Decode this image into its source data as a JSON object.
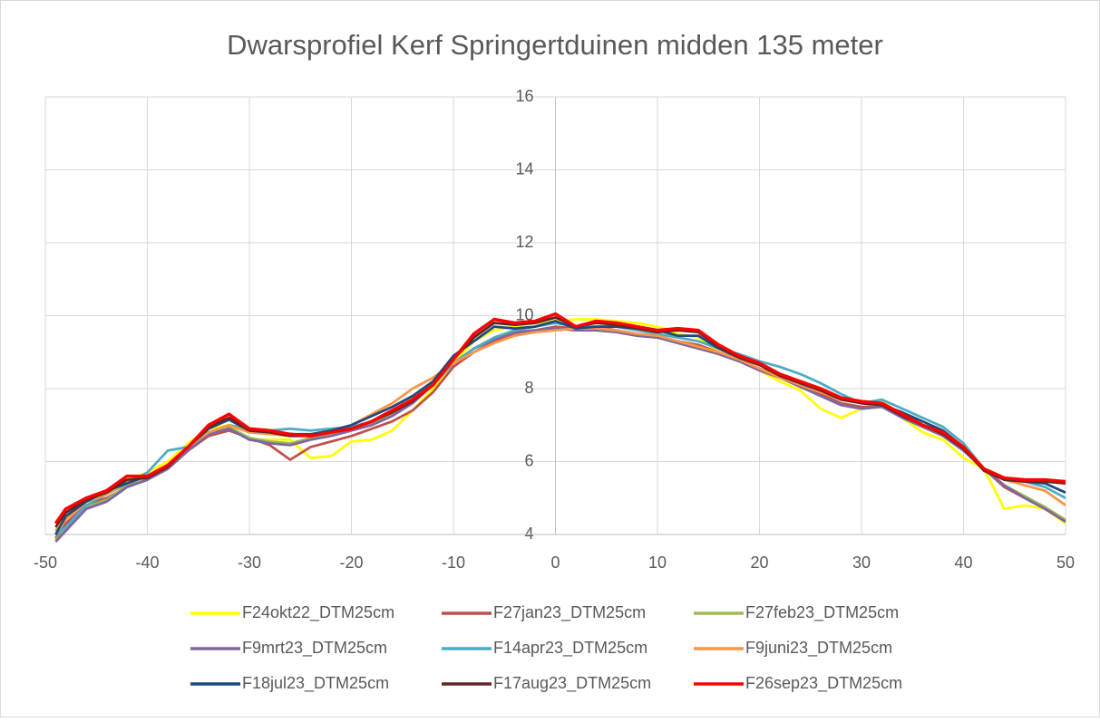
{
  "chart_data": {
    "type": "line",
    "title": "Dwarsprofiel Kerf Springertduinen midden 135 meter",
    "x": [
      -49,
      -48,
      -46,
      -44,
      -42,
      -40,
      -38,
      -36,
      -34,
      -32,
      -30,
      -28,
      -26,
      -24,
      -22,
      -20,
      -18,
      -16,
      -14,
      -12,
      -10,
      -8,
      -6,
      -4,
      -2,
      0,
      2,
      4,
      6,
      8,
      10,
      12,
      14,
      16,
      18,
      20,
      22,
      24,
      26,
      28,
      30,
      32,
      34,
      36,
      38,
      40,
      42,
      44,
      46,
      48,
      50
    ],
    "xlim": [
      -50,
      50
    ],
    "xticks": [
      -50,
      -40,
      -30,
      -20,
      -10,
      0,
      10,
      20,
      30,
      40,
      50
    ],
    "ylim": [
      4,
      16
    ],
    "yticks": [
      4,
      6,
      8,
      10,
      12,
      14,
      16
    ],
    "grid": true,
    "legend": "bottom",
    "series": [
      {
        "name": "F24okt22_DTM25cm",
        "color": "#ffff00",
        "values": [
          4.1,
          4.5,
          4.9,
          5.1,
          5.5,
          5.7,
          6.0,
          6.5,
          6.9,
          7.0,
          6.6,
          6.6,
          6.6,
          6.1,
          6.15,
          6.55,
          6.6,
          6.85,
          7.4,
          8.0,
          8.7,
          9.3,
          9.6,
          9.7,
          9.8,
          9.85,
          9.9,
          9.9,
          9.85,
          9.8,
          9.7,
          9.5,
          9.4,
          9.0,
          8.8,
          8.5,
          8.2,
          7.95,
          7.45,
          7.2,
          7.45,
          7.7,
          7.2,
          6.8,
          6.6,
          6.1,
          5.8,
          4.7,
          4.8,
          4.7,
          4.3
        ]
      },
      {
        "name": "F27jan23_DTM25cm",
        "color": "#c0504d",
        "values": [
          3.9,
          4.3,
          4.8,
          5.0,
          5.3,
          5.5,
          5.8,
          6.3,
          6.7,
          6.85,
          6.65,
          6.45,
          6.05,
          6.4,
          6.55,
          6.7,
          6.9,
          7.1,
          7.4,
          7.9,
          8.6,
          9.0,
          9.3,
          9.5,
          9.6,
          9.7,
          9.65,
          9.7,
          9.6,
          9.5,
          9.4,
          9.3,
          9.2,
          9.0,
          8.8,
          8.55,
          8.35,
          8.1,
          7.85,
          7.6,
          7.5,
          7.5,
          7.3,
          7.0,
          6.7,
          6.3,
          5.8,
          5.3,
          5.0,
          4.7,
          4.4
        ]
      },
      {
        "name": "F27feb23_DTM25cm",
        "color": "#9bbb59",
        "values": [
          3.85,
          4.15,
          4.75,
          4.95,
          5.35,
          5.5,
          5.85,
          6.35,
          6.8,
          6.95,
          6.65,
          6.55,
          6.5,
          6.65,
          6.75,
          6.9,
          7.05,
          7.3,
          7.65,
          8.15,
          8.7,
          9.1,
          9.35,
          9.55,
          9.6,
          9.65,
          9.6,
          9.6,
          9.55,
          9.45,
          9.4,
          9.25,
          9.1,
          8.95,
          8.75,
          8.5,
          8.3,
          8.05,
          7.8,
          7.55,
          7.45,
          7.5,
          7.2,
          6.95,
          6.7,
          6.3,
          5.8,
          5.35,
          5.05,
          4.75,
          4.4
        ]
      },
      {
        "name": "F9mrt23_DTM25cm",
        "color": "#8064a2",
        "values": [
          3.8,
          4.1,
          4.7,
          4.9,
          5.3,
          5.5,
          5.8,
          6.3,
          6.75,
          6.9,
          6.6,
          6.5,
          6.45,
          6.6,
          6.7,
          6.85,
          7.0,
          7.25,
          7.6,
          8.1,
          8.7,
          9.1,
          9.35,
          9.55,
          9.6,
          9.65,
          9.6,
          9.6,
          9.55,
          9.45,
          9.4,
          9.25,
          9.1,
          8.95,
          8.75,
          8.5,
          8.3,
          8.05,
          7.8,
          7.55,
          7.45,
          7.5,
          7.2,
          6.95,
          6.7,
          6.3,
          5.8,
          5.35,
          5.0,
          4.7,
          4.35
        ]
      },
      {
        "name": "F14apr23_DTM25cm",
        "color": "#4bacc6",
        "values": [
          4.0,
          4.2,
          4.8,
          5.1,
          5.4,
          5.7,
          6.3,
          6.4,
          6.8,
          7.0,
          6.9,
          6.85,
          6.9,
          6.85,
          6.9,
          6.95,
          7.1,
          7.4,
          7.7,
          8.1,
          8.7,
          9.1,
          9.4,
          9.6,
          9.7,
          9.8,
          9.7,
          9.7,
          9.7,
          9.6,
          9.5,
          9.4,
          9.3,
          9.1,
          8.95,
          8.75,
          8.6,
          8.4,
          8.15,
          7.85,
          7.6,
          7.7,
          7.45,
          7.2,
          6.95,
          6.5,
          5.8,
          5.5,
          5.45,
          5.3,
          5.0
        ]
      },
      {
        "name": "F9juni23_DTM25cm",
        "color": "#f79646",
        "values": [
          4.1,
          4.4,
          4.9,
          5.1,
          5.45,
          5.6,
          5.9,
          6.4,
          6.8,
          7.0,
          6.8,
          6.75,
          6.7,
          6.75,
          6.85,
          7.0,
          7.3,
          7.6,
          8.0,
          8.3,
          8.7,
          9.0,
          9.25,
          9.45,
          9.55,
          9.6,
          9.65,
          9.65,
          9.6,
          9.5,
          9.45,
          9.3,
          9.15,
          9.0,
          8.8,
          8.55,
          8.3,
          8.1,
          7.9,
          7.7,
          7.6,
          7.55,
          7.3,
          7.0,
          6.8,
          6.4,
          5.8,
          5.5,
          5.35,
          5.2,
          4.8
        ]
      },
      {
        "name": "F18jul23_DTM25cm",
        "color": "#1f497d",
        "values": [
          4.0,
          4.5,
          4.9,
          5.2,
          5.4,
          5.6,
          5.9,
          6.4,
          6.9,
          7.15,
          6.85,
          6.8,
          6.75,
          6.75,
          6.85,
          7.0,
          7.25,
          7.5,
          7.8,
          8.2,
          8.9,
          9.3,
          9.7,
          9.65,
          9.7,
          9.85,
          9.65,
          9.7,
          9.7,
          9.65,
          9.6,
          9.45,
          9.45,
          9.1,
          8.85,
          8.65,
          8.4,
          8.15,
          7.95,
          7.75,
          7.6,
          7.55,
          7.35,
          7.1,
          6.85,
          6.4,
          5.8,
          5.55,
          5.45,
          5.4,
          5.15
        ]
      },
      {
        "name": "F17aug23_DTM25cm",
        "color": "#632523",
        "values": [
          4.2,
          4.6,
          4.95,
          5.15,
          5.5,
          5.55,
          5.85,
          6.4,
          6.95,
          7.2,
          6.85,
          6.8,
          6.7,
          6.7,
          6.8,
          6.9,
          7.1,
          7.35,
          7.65,
          8.1,
          8.8,
          9.4,
          9.8,
          9.75,
          9.8,
          9.95,
          9.7,
          9.8,
          9.75,
          9.65,
          9.55,
          9.6,
          9.55,
          9.15,
          8.85,
          8.65,
          8.35,
          8.15,
          7.95,
          7.7,
          7.6,
          7.55,
          7.25,
          7.0,
          6.75,
          6.35,
          5.75,
          5.5,
          5.45,
          5.45,
          5.4
        ]
      },
      {
        "name": "F26sep23_DTM25cm",
        "color": "#ff0000",
        "values": [
          4.3,
          4.7,
          5.0,
          5.2,
          5.6,
          5.6,
          5.9,
          6.4,
          7.0,
          7.3,
          6.9,
          6.85,
          6.75,
          6.7,
          6.8,
          6.9,
          7.1,
          7.4,
          7.7,
          8.1,
          8.8,
          9.5,
          9.9,
          9.8,
          9.85,
          10.05,
          9.7,
          9.85,
          9.8,
          9.7,
          9.6,
          9.65,
          9.6,
          9.2,
          8.9,
          8.7,
          8.4,
          8.2,
          8.0,
          7.75,
          7.65,
          7.6,
          7.3,
          7.0,
          6.8,
          6.4,
          5.8,
          5.55,
          5.5,
          5.5,
          5.45
        ]
      }
    ]
  }
}
